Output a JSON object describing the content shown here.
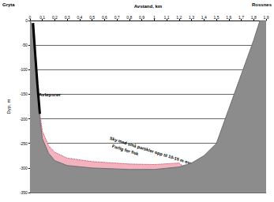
{
  "chart_data": {
    "type": "area",
    "xlabel": "Avstand, km",
    "ylabel": "Dyp, m",
    "xlim": [
      0,
      1.9
    ],
    "ylim": [
      -350,
      0
    ],
    "xticks": [
      0,
      {
        "value": 0.1,
        "label": "0,1"
      },
      {
        "value": 0.2,
        "label": "0,2"
      },
      {
        "value": 0.3,
        "label": "0,3"
      },
      {
        "value": 0.4,
        "label": "0,4"
      },
      {
        "value": 0.5,
        "label": "0,5"
      },
      {
        "value": 0.6,
        "label": "0,6"
      },
      {
        "value": 0.7,
        "label": "0,7"
      },
      {
        "value": 0.8,
        "label": "0,8"
      },
      {
        "value": 0.9,
        "label": "0,9"
      },
      1,
      {
        "value": 1.1,
        "label": "1,1"
      },
      {
        "value": 1.2,
        "label": "1,2"
      },
      {
        "value": 1.3,
        "label": "1,3"
      },
      {
        "value": 1.4,
        "label": "1,4"
      },
      {
        "value": 1.5,
        "label": "1,5"
      },
      {
        "value": 1.6,
        "label": "1,6"
      },
      {
        "value": 1.7,
        "label": "1,7"
      },
      {
        "value": 1.8,
        "label": "1,8"
      },
      {
        "value": 1.9,
        "label": "1,9"
      }
    ],
    "yticks": [
      -350,
      -300,
      -250,
      -200,
      -150,
      -100,
      -50,
      0
    ],
    "grid": true,
    "annotations": [
      "Gryta",
      "Rossnes",
      "Avløpsrør",
      "Sky med små partikler opp til 10-15 m over bunnen",
      "Farlig for fisk"
    ],
    "series": [
      {
        "type": "area",
        "color": "#f2b3bf",
        "line_style": "dotted",
        "x": [
          0.08,
          0.1,
          0.15,
          0.2,
          0.3,
          0.5,
          0.8,
          1.0,
          1.2,
          1.25
        ],
        "values": [
          -190,
          -225,
          -255,
          -268,
          -280,
          -287,
          -292,
          -293,
          -290,
          -300
        ]
      },
      {
        "type": "area",
        "color": "#8c8c8c",
        "line_style": "solid",
        "x": [
          0,
          0.02,
          0.05,
          0.08,
          0.1,
          0.15,
          0.2,
          0.3,
          0.5,
          0.8,
          1.0,
          1.2,
          1.3,
          1.4,
          1.5,
          1.6,
          1.7,
          1.8,
          1.85,
          1.9
        ],
        "values": [
          0,
          -10,
          -100,
          -200,
          -240,
          -270,
          -285,
          -295,
          -300,
          -303,
          -303,
          -298,
          -290,
          -275,
          -250,
          -180,
          -110,
          -40,
          0,
          0
        ]
      },
      {
        "type": "line",
        "color": "#000000",
        "line_style": "solid",
        "x": [
          0.025,
          0.04,
          0.06,
          0.08
        ],
        "values": [
          -5,
          -60,
          -130,
          -190
        ]
      }
    ]
  }
}
